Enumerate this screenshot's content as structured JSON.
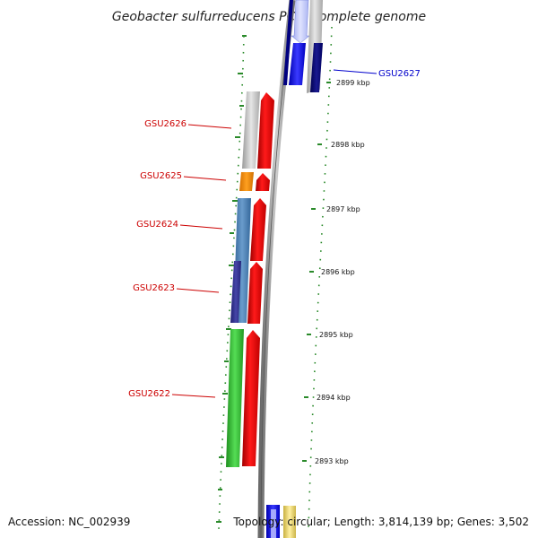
{
  "title": "Geobacter sulfurreducens PCA, complete genome",
  "footer": {
    "accession": "Accession: NC_002939",
    "topology": "Topology: circular; Length: 3,814,139 bp; Genes: 3,502"
  },
  "colors": {
    "reverse_label": "#cc0000",
    "forward_label": "#0000cc",
    "backbone": "#8a8a8a",
    "tick": "#2a8a2a",
    "orf_reverse": "#ee0000",
    "orf_forward": "#0000ee"
  },
  "genes": [
    {
      "id": "GSU2627",
      "strand": "forward"
    },
    {
      "id": "GSU2626",
      "strand": "reverse"
    },
    {
      "id": "GSU2625",
      "strand": "reverse"
    },
    {
      "id": "GSU2624",
      "strand": "reverse"
    },
    {
      "id": "GSU2623",
      "strand": "reverse"
    },
    {
      "id": "GSU2622",
      "strand": "reverse"
    }
  ],
  "ruler": [
    "2899 kbp",
    "2898 kbp",
    "2897 kbp",
    "2896 kbp",
    "2895 kbp",
    "2894 kbp",
    "2893 kbp"
  ]
}
